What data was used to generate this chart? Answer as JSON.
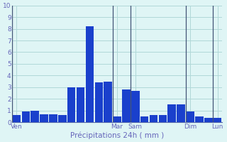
{
  "background_color": "#dff5f5",
  "bar_color": "#1a40cc",
  "grid_color": "#b0d8d8",
  "grid_color_minor": "#c8e8e8",
  "text_color": "#6666bb",
  "axis_color": "#5566aa",
  "ylim": [
    0,
    10
  ],
  "yticks": [
    0,
    1,
    2,
    3,
    4,
    5,
    6,
    7,
    8,
    9,
    10
  ],
  "values": [
    0.6,
    0.9,
    1.0,
    0.7,
    0.7,
    0.6,
    3.0,
    3.0,
    8.2,
    3.4,
    3.5,
    0.5,
    2.8,
    2.7,
    0.5,
    0.6,
    0.6,
    1.5,
    1.5,
    0.9,
    0.5,
    0.4,
    0.4
  ],
  "day_labels": [
    "Ven",
    "Mar",
    "Sam",
    "Dim",
    "Lun"
  ],
  "day_tick_positions": [
    0,
    11,
    13,
    19,
    22
  ],
  "day_line_positions": [
    -0.5,
    10.5,
    12.5,
    18.5,
    21.5
  ],
  "xlabel": "Précipitations 24h ( mm )"
}
